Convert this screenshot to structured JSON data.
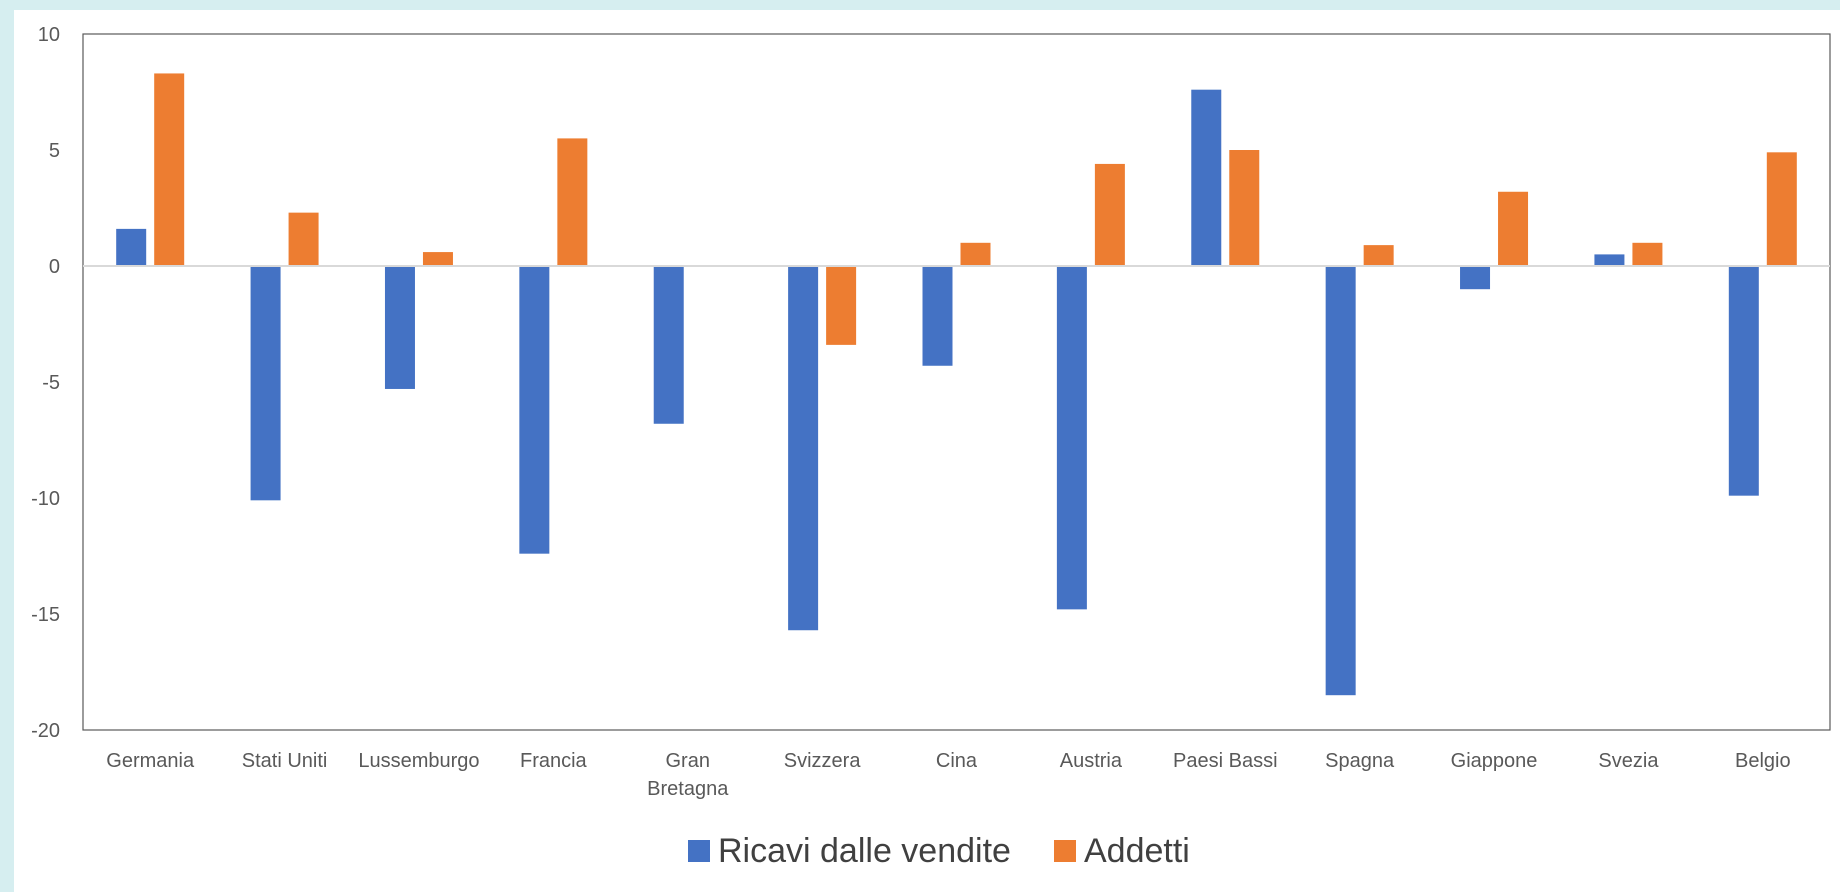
{
  "chart_data": {
    "type": "bar",
    "categories": [
      "Germania",
      "Stati Uniti",
      "Lussemburgo",
      "Francia",
      "Gran Bretagna",
      "Svizzera",
      "Cina",
      "Austria",
      "Paesi Bassi",
      "Spagna",
      "Giappone",
      "Svezia",
      "Belgio"
    ],
    "category_lines": [
      [
        "Germania"
      ],
      [
        "Stati Uniti"
      ],
      [
        "Lussemburgo"
      ],
      [
        "Francia"
      ],
      [
        "Gran",
        "Bretagna"
      ],
      [
        "Svizzera"
      ],
      [
        "Cina"
      ],
      [
        "Austria"
      ],
      [
        "Paesi Bassi"
      ],
      [
        "Spagna"
      ],
      [
        "Giappone"
      ],
      [
        "Svezia"
      ],
      [
        "Belgio"
      ]
    ],
    "series": [
      {
        "name": "Ricavi dalle vendite",
        "color": "#4472c4",
        "values": [
          1.6,
          -10.1,
          -5.3,
          -12.4,
          -6.8,
          -15.7,
          -4.3,
          -14.8,
          7.6,
          -18.5,
          -1.0,
          0.5,
          -9.9
        ]
      },
      {
        "name": "Addetti",
        "color": "#ed7d31",
        "values": [
          8.3,
          2.3,
          0.6,
          5.5,
          0.0,
          -3.4,
          1.0,
          4.4,
          5.0,
          0.9,
          3.2,
          1.0,
          4.9
        ]
      }
    ],
    "ylim": [
      -20,
      10
    ],
    "yticks": [
      -20,
      -15,
      -10,
      -5,
      0,
      5,
      10
    ],
    "title": "",
    "xlabel": "",
    "ylabel": "",
    "legend_position": "bottom",
    "grid": false
  }
}
